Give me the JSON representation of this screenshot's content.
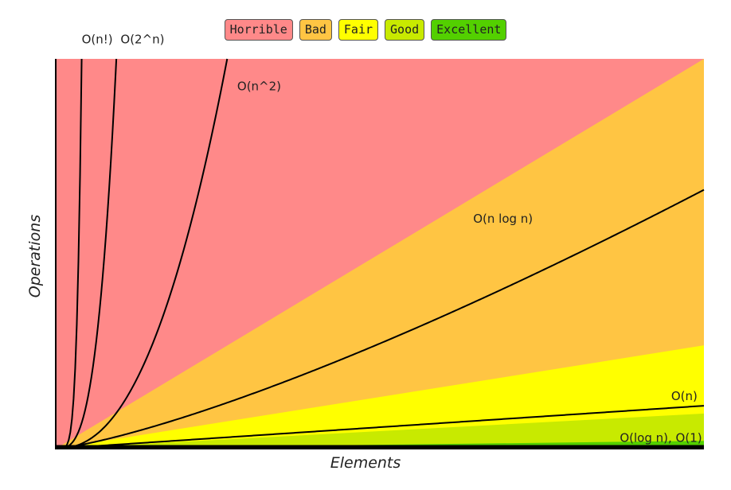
{
  "legend": [
    {
      "label": "Horrible",
      "color": "#ff8989"
    },
    {
      "label": "Bad",
      "color": "#ffc543"
    },
    {
      "label": "Fair",
      "color": "#ffff00"
    },
    {
      "label": "Good",
      "color": "#c8ea00"
    },
    {
      "label": "Excellent",
      "color": "#53d000"
    }
  ],
  "chart_data": {
    "type": "line",
    "xlabel": "Elements",
    "ylabel": "Operations",
    "xlim": [
      0,
      100
    ],
    "ylim": [
      0,
      100
    ],
    "grid": false,
    "legend_position": "top-center",
    "region_colors": {
      "horrible": "#ff8989",
      "bad": "#ffc543",
      "fair": "#ffff00",
      "good": "#c8ea00",
      "excellent": "#53d000"
    },
    "series": [
      {
        "name": "O(n!)",
        "fn": "factorial"
      },
      {
        "name": "O(2^n)",
        "fn": "exponential"
      },
      {
        "name": "O(n^2)",
        "fn": "quadratic"
      },
      {
        "name": "O(n log n)",
        "fn": "nlogn"
      },
      {
        "name": "O(n)",
        "fn": "linear"
      },
      {
        "name": "O(log n), O(1)",
        "fn": "log_const"
      }
    ]
  }
}
